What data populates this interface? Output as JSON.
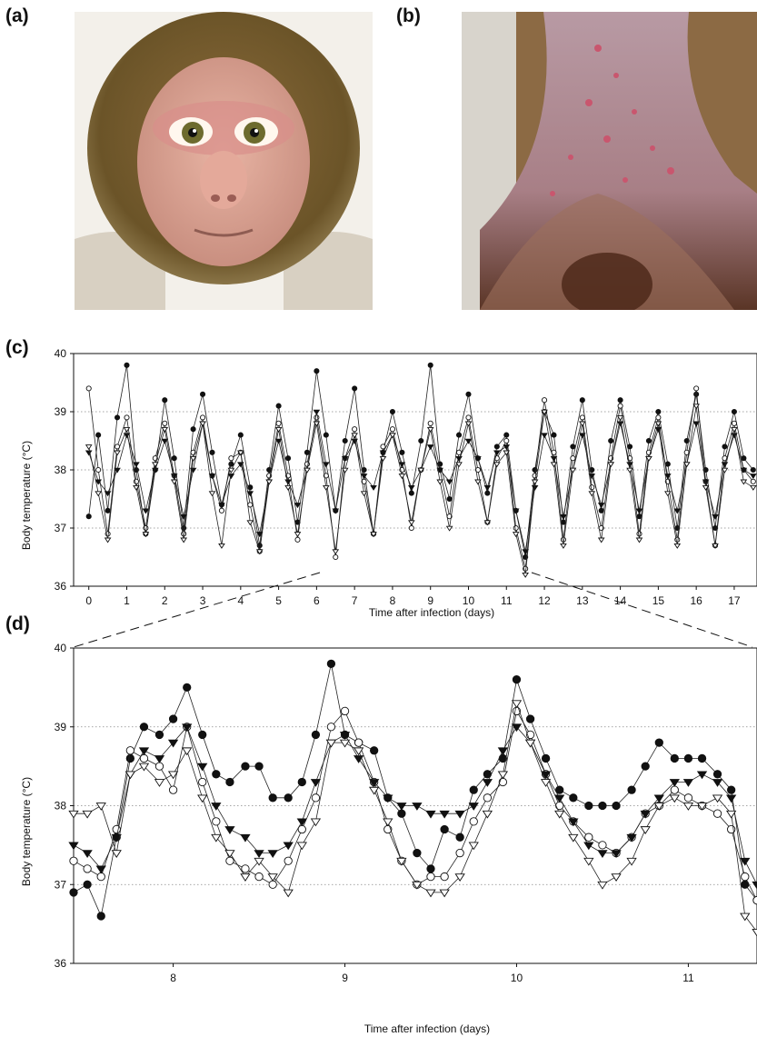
{
  "panels": {
    "a": "(a)",
    "b": "(b)",
    "c": "(c)",
    "d": "(d)"
  },
  "chart_data": [
    {
      "type": "scatter",
      "panel": "(c)",
      "title": "",
      "xlabel": "Time after infection (days)",
      "ylabel": "Body temperature (°C)",
      "xlim": [
        -0.4,
        17.6
      ],
      "ylim": [
        36,
        40
      ],
      "xticks": [
        0,
        1,
        2,
        3,
        4,
        5,
        6,
        7,
        8,
        9,
        10,
        11,
        12,
        13,
        14,
        15,
        16,
        17
      ],
      "yticks": [
        36,
        37,
        38,
        39,
        40
      ],
      "grid": "horizontal dotted at 37, 38, 39",
      "series": [
        {
          "marker": "filled-circle",
          "x": [
            0,
            0.25,
            0.5,
            0.75,
            1,
            1.25,
            1.5,
            1.75,
            2,
            2.25,
            2.5,
            2.75,
            3,
            3.25,
            3.5,
            3.75,
            4,
            4.25,
            4.5,
            4.75,
            5,
            5.25,
            5.5,
            5.75,
            6,
            6.25,
            6.5,
            6.75,
            7,
            7.25,
            7.5,
            7.75,
            8,
            8.25,
            8.5,
            8.75,
            9,
            9.25,
            9.5,
            9.75,
            10,
            10.25,
            10.5,
            10.75,
            11,
            11.25,
            11.5,
            11.75,
            12,
            12.25,
            12.5,
            12.75,
            13,
            13.25,
            13.5,
            13.75,
            14,
            14.25,
            14.5,
            14.75,
            15,
            15.25,
            15.5,
            15.75,
            16,
            16.25,
            16.5,
            16.75,
            17,
            17.25,
            17.5
          ],
          "values": [
            37.2,
            38.6,
            37.3,
            38.9,
            39.8,
            38.0,
            36.9,
            38.0,
            39.2,
            38.2,
            37.0,
            38.7,
            39.3,
            38.3,
            37.4,
            38.1,
            38.6,
            37.7,
            36.7,
            38.0,
            39.1,
            38.2,
            37.1,
            38.3,
            39.7,
            38.6,
            37.3,
            38.5,
            39.4,
            38.0,
            36.9,
            38.3,
            39.0,
            38.3,
            37.6,
            38.5,
            39.8,
            38.1,
            37.5,
            38.6,
            39.3,
            38.2,
            37.6,
            38.4,
            38.6,
            37.3,
            36.5,
            38.0,
            39.0,
            38.6,
            37.1,
            38.4,
            39.2,
            38.0,
            37.3,
            38.5,
            39.2,
            38.4,
            37.2,
            38.5,
            39.0,
            38.1,
            37.0,
            38.5,
            39.3,
            38.0,
            37.0,
            38.4,
            39.0,
            38.2,
            38.0
          ]
        },
        {
          "marker": "open-circle",
          "x": [
            0,
            0.25,
            0.5,
            0.75,
            1,
            1.25,
            1.5,
            1.75,
            2,
            2.25,
            2.5,
            2.75,
            3,
            3.25,
            3.5,
            3.75,
            4,
            4.25,
            4.5,
            4.75,
            5,
            5.25,
            5.5,
            5.75,
            6,
            6.25,
            6.5,
            6.75,
            7,
            7.25,
            7.5,
            7.75,
            8,
            8.25,
            8.5,
            8.75,
            9,
            9.25,
            9.5,
            9.75,
            10,
            10.25,
            10.5,
            10.75,
            11,
            11.25,
            11.5,
            11.75,
            12,
            12.25,
            12.5,
            12.75,
            13,
            13.25,
            13.5,
            13.75,
            14,
            14.25,
            14.5,
            14.75,
            15,
            15.25,
            15.5,
            15.75,
            16,
            16.25,
            16.5,
            16.75,
            17,
            17.25,
            17.5
          ],
          "values": [
            39.4,
            38.0,
            36.9,
            38.4,
            38.9,
            37.8,
            37.0,
            38.2,
            38.8,
            37.9,
            36.9,
            38.3,
            38.9,
            37.9,
            37.3,
            38.2,
            38.3,
            37.4,
            36.6,
            37.9,
            38.8,
            37.9,
            36.8,
            38.1,
            38.9,
            37.9,
            36.5,
            38.2,
            38.7,
            37.8,
            36.9,
            38.4,
            38.7,
            38.0,
            37.0,
            38.0,
            38.8,
            38.0,
            37.2,
            38.3,
            38.9,
            38.0,
            37.1,
            38.2,
            38.5,
            37.0,
            36.3,
            37.9,
            39.2,
            38.3,
            36.8,
            38.2,
            38.9,
            37.7,
            37.0,
            38.2,
            39.1,
            38.2,
            36.9,
            38.3,
            38.9,
            37.8,
            36.8,
            38.3,
            39.4,
            37.8,
            36.7,
            38.2,
            38.8,
            38.0,
            37.8
          ]
        },
        {
          "marker": "filled-triangle-down",
          "x": [
            0,
            0.25,
            0.5,
            0.75,
            1,
            1.25,
            1.5,
            1.75,
            2,
            2.25,
            2.5,
            2.75,
            3,
            3.25,
            3.5,
            3.75,
            4,
            4.25,
            4.5,
            4.75,
            5,
            5.25,
            5.5,
            5.75,
            6,
            6.25,
            6.5,
            6.75,
            7,
            7.25,
            7.5,
            7.75,
            8,
            8.25,
            8.5,
            8.75,
            9,
            9.25,
            9.5,
            9.75,
            10,
            10.25,
            10.5,
            10.75,
            11,
            11.25,
            11.5,
            11.75,
            12,
            12.25,
            12.5,
            12.75,
            13,
            13.25,
            13.5,
            13.75,
            14,
            14.25,
            14.5,
            14.75,
            15,
            15.25,
            15.5,
            15.75,
            16,
            16.25,
            16.5,
            16.75,
            17,
            17.25,
            17.5
          ],
          "values": [
            38.3,
            37.8,
            37.6,
            38.0,
            38.6,
            38.1,
            37.3,
            38.0,
            38.5,
            37.9,
            37.2,
            38.0,
            38.8,
            37.9,
            37.4,
            37.9,
            38.1,
            37.6,
            36.9,
            37.8,
            38.5,
            37.8,
            37.4,
            38.0,
            39.0,
            38.1,
            37.3,
            38.2,
            38.5,
            37.9,
            37.7,
            38.3,
            38.6,
            38.1,
            37.7,
            38.0,
            38.4,
            38.0,
            37.8,
            38.2,
            38.5,
            38.2,
            37.7,
            38.3,
            38.4,
            37.3,
            36.6,
            37.7,
            38.6,
            38.2,
            37.2,
            38.0,
            38.6,
            37.9,
            37.4,
            38.1,
            38.8,
            38.1,
            37.3,
            38.2,
            38.7,
            37.9,
            37.3,
            38.1,
            38.8,
            37.8,
            37.2,
            38.1,
            38.6,
            38.0,
            37.9
          ]
        },
        {
          "marker": "open-triangle-down",
          "x": [
            0,
            0.25,
            0.5,
            0.75,
            1,
            1.25,
            1.5,
            1.75,
            2,
            2.25,
            2.5,
            2.75,
            3,
            3.25,
            3.5,
            3.75,
            4,
            4.25,
            4.5,
            4.75,
            5,
            5.25,
            5.5,
            5.75,
            6,
            6.25,
            6.5,
            6.75,
            7,
            7.25,
            7.5,
            7.75,
            8,
            8.25,
            8.5,
            8.75,
            9,
            9.25,
            9.5,
            9.75,
            10,
            10.25,
            10.5,
            10.75,
            11,
            11.25,
            11.5,
            11.75,
            12,
            12.25,
            12.5,
            12.75,
            13,
            13.25,
            13.5,
            13.75,
            14,
            14.25,
            14.5,
            14.75,
            15,
            15.25,
            15.5,
            15.75,
            16,
            16.25,
            16.5,
            16.75,
            17,
            17.25,
            17.5
          ],
          "values": [
            38.4,
            37.6,
            36.8,
            38.3,
            38.7,
            37.7,
            36.9,
            38.1,
            38.7,
            37.8,
            36.8,
            38.2,
            38.8,
            37.6,
            36.7,
            38.0,
            38.3,
            37.1,
            36.6,
            37.8,
            38.7,
            37.7,
            36.9,
            38.0,
            38.8,
            37.7,
            36.6,
            38.0,
            38.6,
            37.6,
            36.9,
            38.2,
            38.6,
            37.9,
            37.1,
            38.0,
            38.7,
            37.8,
            37.0,
            38.1,
            38.8,
            37.8,
            37.1,
            38.1,
            38.3,
            36.9,
            36.2,
            37.8,
            39.0,
            38.1,
            36.7,
            38.0,
            38.8,
            37.6,
            36.8,
            38.1,
            38.9,
            38.0,
            36.8,
            38.2,
            38.8,
            37.6,
            36.7,
            38.1,
            39.1,
            37.7,
            36.7,
            38.0,
            38.7,
            37.8,
            37.7
          ]
        }
      ]
    },
    {
      "type": "scatter",
      "panel": "(d)",
      "title": "",
      "xlabel": "Time after infection (days)",
      "ylabel": "Body temperature (°C)",
      "xlim": [
        7.42,
        11.4
      ],
      "ylim": [
        36,
        40
      ],
      "xticks": [
        8,
        9,
        10,
        11
      ],
      "yticks": [
        36,
        37,
        38,
        39,
        40
      ],
      "grid": "horizontal dotted at 37, 38, 39",
      "series": [
        {
          "marker": "filled-circle",
          "x": [
            7.42,
            7.5,
            7.58,
            7.67,
            7.75,
            7.83,
            7.92,
            8.0,
            8.08,
            8.17,
            8.25,
            8.33,
            8.42,
            8.5,
            8.58,
            8.67,
            8.75,
            8.83,
            8.92,
            9.0,
            9.08,
            9.17,
            9.25,
            9.33,
            9.42,
            9.5,
            9.58,
            9.67,
            9.75,
            9.83,
            9.92,
            10.0,
            10.08,
            10.17,
            10.25,
            10.33,
            10.42,
            10.5,
            10.58,
            10.67,
            10.75,
            10.83,
            10.92,
            11.0,
            11.08,
            11.17,
            11.25,
            11.33,
            11.4
          ],
          "values": [
            36.9,
            37.0,
            36.6,
            37.6,
            38.6,
            39.0,
            38.9,
            39.1,
            39.5,
            38.9,
            38.4,
            38.3,
            38.5,
            38.5,
            38.1,
            38.1,
            38.3,
            38.9,
            39.8,
            38.9,
            38.8,
            38.7,
            38.1,
            37.9,
            37.4,
            37.2,
            37.7,
            37.6,
            38.2,
            38.4,
            38.6,
            39.6,
            39.1,
            38.6,
            38.2,
            38.1,
            38.0,
            38.0,
            38.0,
            38.2,
            38.5,
            38.8,
            38.6,
            38.6,
            38.6,
            38.4,
            38.2,
            37.0,
            36.8
          ]
        },
        {
          "marker": "open-circle",
          "x": [
            7.42,
            7.5,
            7.58,
            7.67,
            7.75,
            7.83,
            7.92,
            8.0,
            8.08,
            8.17,
            8.25,
            8.33,
            8.42,
            8.5,
            8.58,
            8.67,
            8.75,
            8.83,
            8.92,
            9.0,
            9.08,
            9.17,
            9.25,
            9.33,
            9.42,
            9.5,
            9.58,
            9.67,
            9.75,
            9.83,
            9.92,
            10.0,
            10.08,
            10.17,
            10.25,
            10.33,
            10.42,
            10.5,
            10.58,
            10.67,
            10.75,
            10.83,
            10.92,
            11.0,
            11.08,
            11.17,
            11.25,
            11.33,
            11.4
          ],
          "values": [
            37.3,
            37.2,
            37.1,
            37.7,
            38.7,
            38.6,
            38.5,
            38.2,
            39.0,
            38.3,
            37.8,
            37.3,
            37.2,
            37.1,
            37.0,
            37.3,
            37.7,
            38.1,
            39.0,
            39.2,
            38.8,
            38.3,
            37.7,
            37.3,
            37.0,
            37.1,
            37.1,
            37.4,
            37.8,
            38.1,
            38.3,
            39.2,
            38.9,
            38.4,
            38.0,
            37.8,
            37.6,
            37.5,
            37.4,
            37.6,
            37.9,
            38.0,
            38.2,
            38.1,
            38.0,
            37.9,
            37.7,
            37.1,
            36.8
          ]
        },
        {
          "marker": "filled-triangle-down",
          "x": [
            7.42,
            7.5,
            7.58,
            7.67,
            7.75,
            7.83,
            7.92,
            8.0,
            8.08,
            8.17,
            8.25,
            8.33,
            8.42,
            8.5,
            8.58,
            8.67,
            8.75,
            8.83,
            8.92,
            9.0,
            9.08,
            9.17,
            9.25,
            9.33,
            9.42,
            9.5,
            9.58,
            9.67,
            9.75,
            9.83,
            9.92,
            10.0,
            10.08,
            10.17,
            10.25,
            10.33,
            10.42,
            10.5,
            10.58,
            10.67,
            10.75,
            10.83,
            10.92,
            11.0,
            11.08,
            11.17,
            11.25,
            11.33,
            11.4
          ],
          "values": [
            37.5,
            37.4,
            37.2,
            37.6,
            38.4,
            38.7,
            38.6,
            38.8,
            39.0,
            38.5,
            38.0,
            37.7,
            37.6,
            37.4,
            37.4,
            37.5,
            37.8,
            38.3,
            38.8,
            38.9,
            38.6,
            38.3,
            38.1,
            38.0,
            38.0,
            37.9,
            37.9,
            37.9,
            38.0,
            38.3,
            38.7,
            39.0,
            38.8,
            38.4,
            38.1,
            37.8,
            37.5,
            37.4,
            37.4,
            37.6,
            37.9,
            38.1,
            38.3,
            38.3,
            38.4,
            38.3,
            38.1,
            37.3,
            37.0
          ]
        },
        {
          "marker": "open-triangle-down",
          "x": [
            7.42,
            7.5,
            7.58,
            7.67,
            7.75,
            7.83,
            7.92,
            8.0,
            8.08,
            8.17,
            8.25,
            8.33,
            8.42,
            8.5,
            8.58,
            8.67,
            8.75,
            8.83,
            8.92,
            9.0,
            9.08,
            9.17,
            9.25,
            9.33,
            9.42,
            9.5,
            9.58,
            9.67,
            9.75,
            9.83,
            9.92,
            10.0,
            10.08,
            10.17,
            10.25,
            10.33,
            10.42,
            10.5,
            10.58,
            10.67,
            10.75,
            10.83,
            10.92,
            11.0,
            11.08,
            11.17,
            11.25,
            11.33,
            11.4
          ],
          "values": [
            37.9,
            37.9,
            38.0,
            37.4,
            38.4,
            38.5,
            38.3,
            38.4,
            38.7,
            38.1,
            37.6,
            37.4,
            37.1,
            37.3,
            37.1,
            36.9,
            37.5,
            37.8,
            38.8,
            38.8,
            38.7,
            38.2,
            37.8,
            37.3,
            37.0,
            36.9,
            36.9,
            37.1,
            37.5,
            37.9,
            38.4,
            39.3,
            38.8,
            38.3,
            37.9,
            37.6,
            37.3,
            37.0,
            37.1,
            37.3,
            37.7,
            38.0,
            38.1,
            38.0,
            38.0,
            38.1,
            37.9,
            36.6,
            36.4
          ]
        }
      ]
    }
  ]
}
